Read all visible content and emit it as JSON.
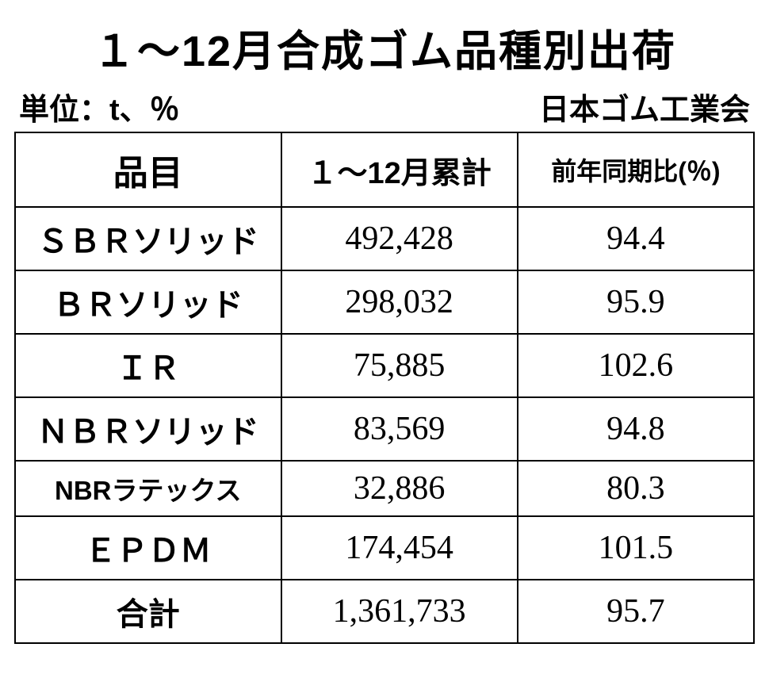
{
  "title": "１～12月合成ゴム品種別出荷",
  "subtitle_left": "単位：t、％",
  "subtitle_right": "日本ゴム工業会",
  "table": {
    "type": "table",
    "columns": [
      "品目",
      "１～12月累計",
      "前年同期比(％)"
    ],
    "column_widths": [
      "36%",
      "32%",
      "32%"
    ],
    "header_fontsizes": [
      44,
      38,
      32
    ],
    "rows": [
      {
        "item": "ＳＢＲソリッド",
        "total": "492,428",
        "yoy": "94.4",
        "small": false
      },
      {
        "item": "ＢＲソリッド",
        "total": "298,032",
        "yoy": "95.9",
        "small": false
      },
      {
        "item": "ＩＲ",
        "total": "75,885",
        "yoy": "102.6",
        "small": false
      },
      {
        "item": "ＮＢＲソリッド",
        "total": "83,569",
        "yoy": "94.8",
        "small": false
      },
      {
        "item": "NBRラテックス",
        "total": "32,886",
        "yoy": "80.3",
        "small": true
      },
      {
        "item": "ＥＰＤＭ",
        "total": "174,454",
        "yoy": "101.5",
        "small": false
      },
      {
        "item": "合計",
        "total": "1,361,733",
        "yoy": "95.7",
        "small": false
      }
    ],
    "border_color": "#000000",
    "background_color": "#ffffff",
    "text_color": "#000000",
    "item_fontsize": 40,
    "item_fontsize_small": 33,
    "value_fontsize": 42,
    "value_font_family": "Times New Roman"
  },
  "title_fontsize": 54,
  "subtitle_fontsize": 38
}
